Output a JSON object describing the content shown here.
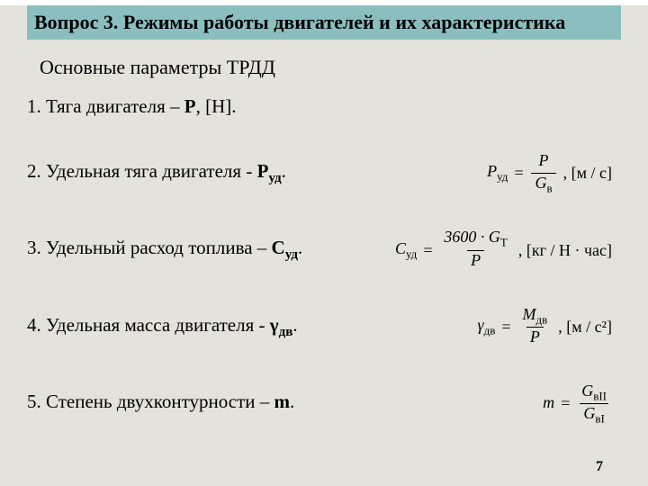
{
  "colors": {
    "slide_bg": "#e3e3db",
    "banner_bg": "#8bbfbf",
    "text": "#000000"
  },
  "title": "Вопрос 3. Режимы работы двигателей и их характеристика",
  "subtitle": "Основные параметры ТРДД",
  "items": [
    {
      "prefix": "1. Тяга двигателя – ",
      "sym": "Р",
      "sym_sub": "",
      "suffix": ", [Н].",
      "formula": null
    },
    {
      "prefix": "2. Удельная тяга двигателя - ",
      "sym": "Р",
      "sym_sub": "уд",
      "suffix": ".",
      "formula": {
        "lhs": "P",
        "lhs_sub": "уд",
        "num": "P",
        "num_sub": "",
        "den": "G",
        "den_sub": "в",
        "unit": "м / с"
      }
    },
    {
      "prefix": "3. Удельный расход топлива – ",
      "sym": "С",
      "sym_sub": "уд",
      "suffix": ".",
      "formula": {
        "lhs": "C",
        "lhs_sub": "уд",
        "num": "3600 · G",
        "num_sub": "T",
        "den": "P",
        "den_sub": "",
        "unit": "кг / Н · час"
      }
    },
    {
      "prefix": "4. Удельная масса двигателя - ",
      "sym": "γ",
      "sym_sub": "дв",
      "suffix": ".",
      "formula": {
        "lhs": "γ",
        "lhs_sub": "дв",
        "num": "M",
        "num_sub": "дв",
        "den": "P",
        "den_sub": "",
        "unit": "м / с²"
      }
    },
    {
      "prefix": "5. Степень двухконтурности – ",
      "sym": "m",
      "sym_sub": "",
      "suffix": ".",
      "formula": {
        "lhs": "m",
        "lhs_sub": "",
        "num": "G",
        "num_sub": "вII",
        "den": "G",
        "den_sub": "вI",
        "unit": ""
      }
    }
  ],
  "page_number": "7"
}
